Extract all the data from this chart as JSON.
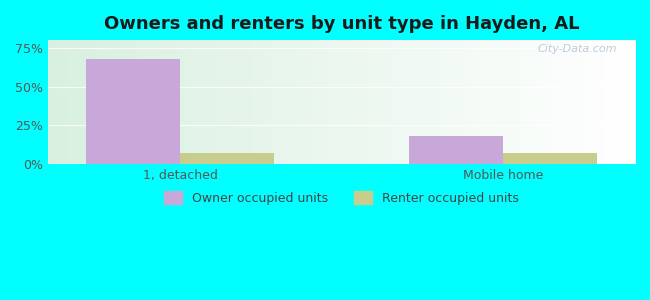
{
  "title": "Owners and renters by unit type in Hayden, AL",
  "categories": [
    "1, detached",
    "Mobile home"
  ],
  "owner_values": [
    68,
    18
  ],
  "renter_values": [
    7,
    7
  ],
  "owner_color": "#c8a8d8",
  "renter_color": "#c8cc8c",
  "yticks": [
    0,
    25,
    50,
    75
  ],
  "ytick_labels": [
    "0%",
    "25%",
    "50%",
    "75%"
  ],
  "ylim": [
    0,
    80
  ],
  "bar_width": 0.32,
  "legend_owner": "Owner occupied units",
  "legend_renter": "Renter occupied units",
  "outer_bg": "#00ffff",
  "watermark": "City-Data.com",
  "title_fontsize": 13,
  "tick_fontsize": 9,
  "legend_fontsize": 9,
  "group_positions": [
    0.45,
    1.55
  ],
  "xlim": [
    0.0,
    2.0
  ]
}
